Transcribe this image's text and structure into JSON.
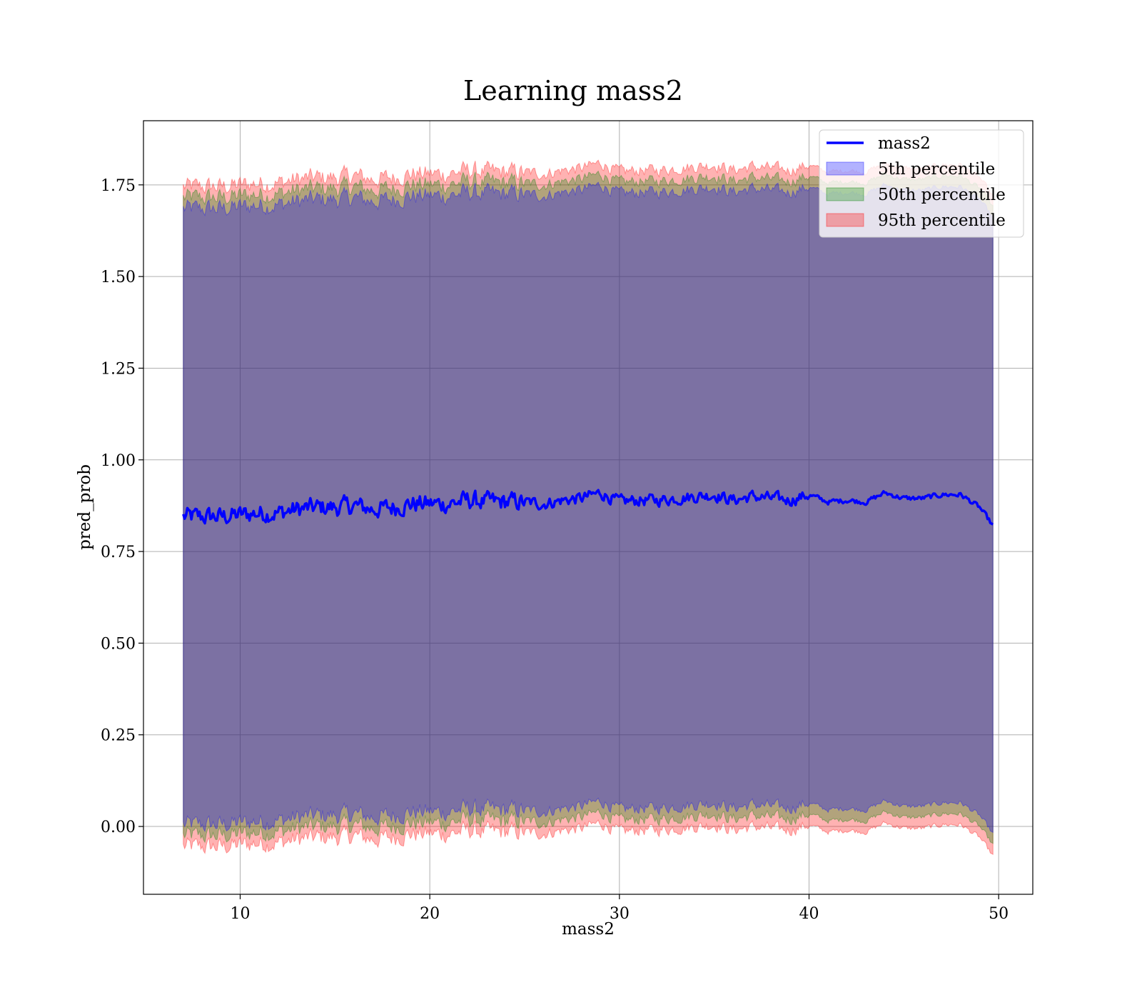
{
  "chart_data": {
    "type": "area",
    "title": "Learning mass2",
    "xlabel": "mass2",
    "ylabel": "pred_prob",
    "xlim": [
      4.9,
      51.8
    ],
    "ylim": [
      -0.185,
      1.925
    ],
    "xticks": [
      10,
      20,
      30,
      40,
      50
    ],
    "yticks": [
      0.0,
      0.25,
      0.5,
      0.75,
      1.0,
      1.25,
      1.5,
      1.75
    ],
    "ytick_labels": [
      "0.00",
      "0.25",
      "0.50",
      "0.75",
      "1.00",
      "1.25",
      "1.50",
      "1.75"
    ],
    "grid": true,
    "legend_position": "top-right",
    "x_range": [
      7.0,
      49.7
    ],
    "mean_series": {
      "name": "mass2",
      "color": "#0000ff",
      "x": [
        7.0,
        8,
        9,
        10,
        11,
        12,
        13,
        14,
        15,
        16,
        17,
        18,
        19,
        20,
        21,
        22,
        23,
        24,
        25,
        26,
        27,
        28,
        29,
        30,
        31,
        32,
        33,
        34,
        35,
        36,
        37,
        38,
        39,
        40,
        41,
        42,
        43,
        44,
        45,
        46,
        47,
        48,
        49,
        49.7
      ],
      "y": [
        0.845,
        0.845,
        0.845,
        0.85,
        0.855,
        0.855,
        0.865,
        0.87,
        0.87,
        0.875,
        0.865,
        0.87,
        0.88,
        0.88,
        0.88,
        0.89,
        0.885,
        0.885,
        0.885,
        0.88,
        0.89,
        0.895,
        0.91,
        0.885,
        0.89,
        0.89,
        0.895,
        0.9,
        0.905,
        0.89,
        0.9,
        0.895,
        0.89,
        0.905,
        0.885,
        0.89,
        0.885,
        0.91,
        0.895,
        0.895,
        0.905,
        0.905,
        0.87,
        0.82
      ]
    },
    "bands": [
      {
        "name": "5th percentile",
        "color": "#0000ff",
        "opacity": 0.3,
        "half_width": 0.84
      },
      {
        "name": "50th percentile",
        "color": "#008000",
        "opacity": 0.3,
        "half_width": 0.87
      },
      {
        "name": "95th percentile",
        "color": "#ff0000",
        "opacity": 0.3,
        "half_width": 0.9
      }
    ]
  }
}
